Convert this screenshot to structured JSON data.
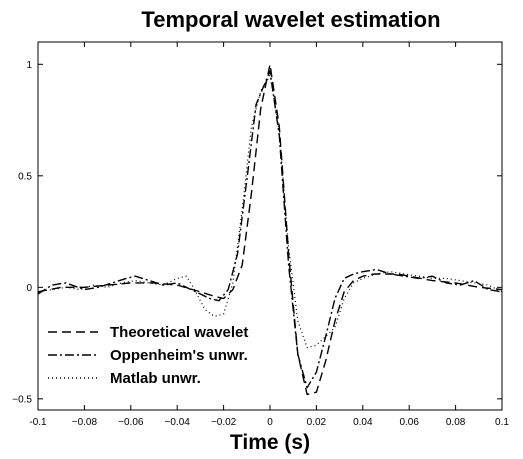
{
  "chart_data": {
    "type": "line",
    "title": "Temporal wavelet estimation",
    "xlabel": "Time (s)",
    "ylabel": "",
    "xlim": [
      -0.1,
      0.1
    ],
    "ylim": [
      -0.55,
      1.1
    ],
    "xticks": [
      -0.1,
      -0.08,
      -0.06,
      -0.04,
      -0.02,
      0,
      0.02,
      0.04,
      0.06,
      0.08,
      0.1
    ],
    "xtick_labels": [
      "-0.1",
      "−0.08",
      "−0.06",
      "−0.04",
      "−0.02",
      "0",
      "0.02",
      "0.04",
      "0.06",
      "0.08",
      "0.1"
    ],
    "yticks": [
      -0.5,
      0,
      0.5,
      1
    ],
    "ytick_labels": [
      "−0.5",
      "0",
      "0.5",
      "1"
    ],
    "grid": false,
    "legend_position": "bottom-left",
    "series": [
      {
        "name": "Theoretical wavelet",
        "style": "dashed",
        "color": "#000000",
        "x": [
          -0.1,
          -0.09,
          -0.08,
          -0.07,
          -0.06,
          -0.05,
          -0.04,
          -0.03,
          -0.024,
          -0.02,
          -0.016,
          -0.012,
          -0.008,
          -0.004,
          0,
          0.004,
          0.008,
          0.012,
          0.016,
          0.02,
          0.024,
          0.028,
          0.032,
          0.036,
          0.04,
          0.045,
          0.05,
          0.055,
          0.06,
          0.07,
          0.08,
          0.09,
          0.1
        ],
        "y": [
          -0.02,
          0.0,
          0.0,
          0.01,
          0.02,
          0.02,
          0.01,
          -0.02,
          -0.04,
          -0.05,
          -0.01,
          0.1,
          0.42,
          0.8,
          1.0,
          0.72,
          0.15,
          -0.3,
          -0.48,
          -0.47,
          -0.33,
          -0.15,
          -0.02,
          0.03,
          0.05,
          0.06,
          0.06,
          0.06,
          0.05,
          0.03,
          0.02,
          0.0,
          -0.01
        ]
      },
      {
        "name": "Oppenheim's unwr.",
        "style": "dashdot",
        "color": "#000000",
        "x": [
          -0.1,
          -0.094,
          -0.088,
          -0.08,
          -0.074,
          -0.068,
          -0.062,
          -0.058,
          -0.052,
          -0.046,
          -0.04,
          -0.034,
          -0.03,
          -0.026,
          -0.022,
          -0.018,
          -0.014,
          -0.01,
          -0.006,
          -0.002,
          0,
          0.004,
          0.008,
          0.012,
          0.016,
          0.02,
          0.024,
          0.028,
          0.032,
          0.036,
          0.04,
          0.046,
          0.052,
          0.058,
          0.064,
          0.07,
          0.076,
          0.082,
          0.088,
          0.094,
          0.1
        ],
        "y": [
          -0.03,
          0.01,
          0.02,
          -0.01,
          0.0,
          0.02,
          0.04,
          0.05,
          0.03,
          0.01,
          0.02,
          -0.01,
          -0.03,
          -0.05,
          -0.06,
          -0.01,
          0.15,
          0.48,
          0.82,
          0.92,
          0.97,
          0.68,
          0.1,
          -0.3,
          -0.45,
          -0.38,
          -0.22,
          -0.05,
          0.04,
          0.06,
          0.07,
          0.08,
          0.06,
          0.05,
          0.04,
          0.05,
          0.02,
          0.01,
          0.03,
          -0.01,
          -0.02
        ]
      },
      {
        "name": "Matlab unwr.",
        "style": "dotted",
        "color": "#000000",
        "x": [
          -0.1,
          -0.094,
          -0.088,
          -0.082,
          -0.076,
          -0.07,
          -0.064,
          -0.058,
          -0.052,
          -0.046,
          -0.04,
          -0.036,
          -0.032,
          -0.028,
          -0.024,
          -0.02,
          -0.016,
          -0.012,
          -0.008,
          -0.004,
          0,
          0.004,
          0.008,
          0.012,
          0.016,
          0.02,
          0.024,
          0.028,
          0.032,
          0.036,
          0.04,
          0.046,
          0.052,
          0.058,
          0.064,
          0.07,
          0.076,
          0.082,
          0.088,
          0.094,
          0.1
        ],
        "y": [
          -0.02,
          -0.01,
          0.0,
          -0.01,
          0.01,
          0.0,
          0.02,
          0.03,
          0.02,
          0.01,
          0.04,
          0.05,
          -0.02,
          -0.1,
          -0.13,
          -0.12,
          0.02,
          0.35,
          0.72,
          0.88,
          0.95,
          0.7,
          0.18,
          -0.15,
          -0.27,
          -0.26,
          -0.22,
          -0.18,
          -0.05,
          0.02,
          0.04,
          0.06,
          0.07,
          0.06,
          0.05,
          0.04,
          0.04,
          0.03,
          0.02,
          0.01,
          -0.02
        ]
      }
    ]
  }
}
